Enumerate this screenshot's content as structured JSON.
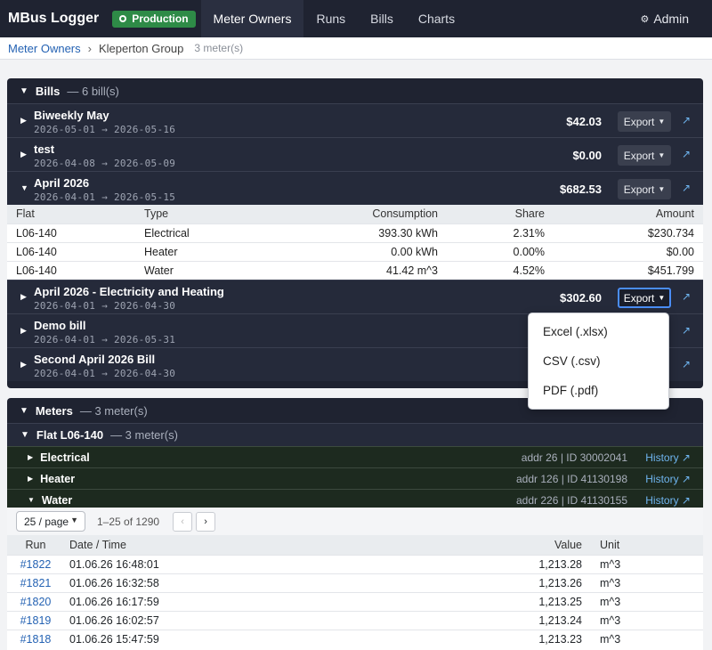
{
  "app": {
    "title": "MBus Logger",
    "env_badge": "Production"
  },
  "nav": {
    "items": [
      {
        "label": "Meter Owners",
        "active": true
      },
      {
        "label": "Runs",
        "active": false
      },
      {
        "label": "Bills",
        "active": false
      },
      {
        "label": "Charts",
        "active": false
      }
    ],
    "user": "Admin"
  },
  "breadcrumb": {
    "root": "Meter Owners",
    "current": "Kleperton Group",
    "count": "3 meter(s)"
  },
  "bills": {
    "title": "Bills",
    "subtitle": "— 6 bill(s)",
    "export_label": "Export",
    "rows": [
      {
        "name": "Biweekly May",
        "dates": "2026-05-01 → 2026-05-16",
        "amount": "$42.03",
        "expanded": false
      },
      {
        "name": "test",
        "dates": "2026-04-08 → 2026-05-09",
        "amount": "$0.00",
        "expanded": false
      },
      {
        "name": "April 2026",
        "dates": "2026-04-01 → 2026-05-15",
        "amount": "$682.53",
        "expanded": true
      },
      {
        "name": "April 2026 - Electricity and Heating",
        "dates": "2026-04-01 → 2026-04-30",
        "amount": "$302.60",
        "expanded": false
      },
      {
        "name": "Demo bill",
        "dates": "2026-04-01 → 2026-05-31",
        "amount": "",
        "expanded": false
      },
      {
        "name": "Second April 2026 Bill",
        "dates": "2026-04-01 → 2026-04-30",
        "amount": "",
        "expanded": false
      }
    ],
    "detail": {
      "headers": [
        "Flat",
        "Type",
        "Consumption",
        "Share",
        "Amount"
      ],
      "rows": [
        [
          "L06-140",
          "Electrical",
          "393.30 kWh",
          "2.31%",
          "$230.734"
        ],
        [
          "L06-140",
          "Heater",
          "0.00 kWh",
          "0.00%",
          "$0.00"
        ],
        [
          "L06-140",
          "Water",
          "41.42 m^3",
          "4.52%",
          "$451.799"
        ]
      ]
    },
    "export_menu": [
      "Excel (.xlsx)",
      "CSV (.csv)",
      "PDF (.pdf)"
    ]
  },
  "meters": {
    "title": "Meters",
    "subtitle": "— 3 meter(s)",
    "flat": {
      "name": "Flat L06-140",
      "subtitle": "— 3 meter(s)"
    },
    "history_label": "History ↗",
    "rows": [
      {
        "name": "Electrical",
        "meta": "addr 26  |  ID 30002041",
        "expanded": false
      },
      {
        "name": "Heater",
        "meta": "addr 126  |  ID 41130198",
        "expanded": false
      },
      {
        "name": "Water",
        "meta": "addr 226  |  ID 41130155",
        "expanded": true
      }
    ]
  },
  "readings": {
    "page_size": "25 / page",
    "page_info": "1–25 of 1290",
    "headers": [
      "Run",
      "Date / Time",
      "Value",
      "Unit"
    ],
    "rows": [
      [
        "#1822",
        "01.06.26 16:48:01",
        "1,213.28",
        "m^3"
      ],
      [
        "#1821",
        "01.06.26 16:32:58",
        "1,213.26",
        "m^3"
      ],
      [
        "#1820",
        "01.06.26 16:17:59",
        "1,213.25",
        "m^3"
      ],
      [
        "#1819",
        "01.06.26 16:02:57",
        "1,213.24",
        "m^3"
      ],
      [
        "#1818",
        "01.06.26 15:47:59",
        "1,213.23",
        "m^3"
      ]
    ]
  },
  "icons": {
    "expanded": "triangle-down-icon",
    "collapsed": "triangle-right-icon",
    "open": "external-link-icon",
    "gear": "gear-icon"
  }
}
